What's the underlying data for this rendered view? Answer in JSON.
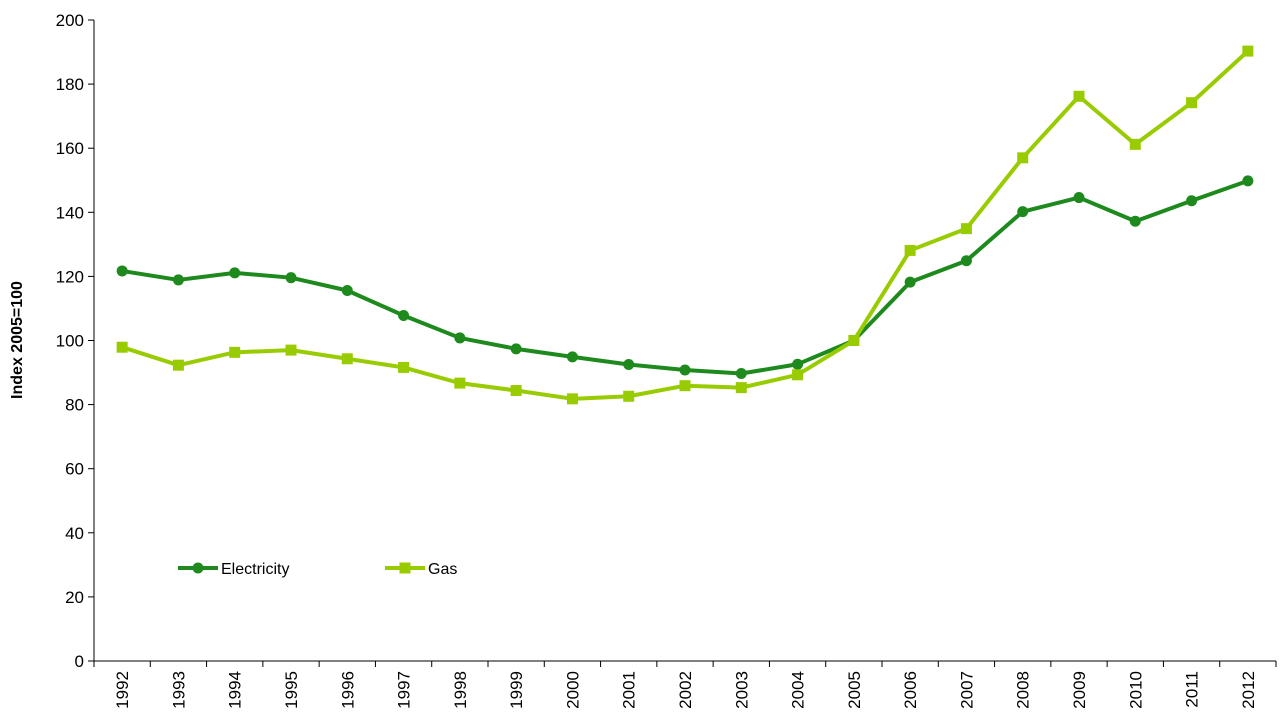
{
  "chart_data": {
    "type": "line",
    "title": "",
    "xlabel": "",
    "ylabel": "Index 2005=100",
    "ylim": [
      0,
      200
    ],
    "y_ticks": [
      0,
      20,
      40,
      60,
      80,
      100,
      120,
      140,
      160,
      180,
      200
    ],
    "categories": [
      "1992",
      "1993",
      "1994",
      "1995",
      "1996",
      "1997",
      "1998",
      "1999",
      "2000",
      "2001",
      "2002",
      "2003",
      "2004",
      "2005",
      "2006",
      "2007",
      "2008",
      "2009",
      "2010",
      "2011",
      "2012"
    ],
    "grid": false,
    "legend_position": "bottom-left",
    "series": [
      {
        "name": "Electricity",
        "color": "#1e8a1e",
        "marker": "circle",
        "values": [
          121.7,
          118.9,
          121.1,
          119.6,
          115.6,
          107.8,
          100.8,
          97.4,
          94.9,
          92.5,
          90.8,
          89.7,
          92.6,
          100,
          118.2,
          124.9,
          140.2,
          144.6,
          137.2,
          143.6,
          149.8
        ]
      },
      {
        "name": "Gas",
        "color": "#99cc00",
        "marker": "square",
        "values": [
          97.9,
          92.3,
          96.3,
          97.0,
          94.3,
          91.6,
          86.7,
          84.4,
          81.8,
          82.6,
          85.9,
          85.3,
          89.3,
          100,
          128.1,
          134.9,
          157.0,
          176.2,
          161.2,
          174.2,
          190.3
        ]
      }
    ]
  }
}
